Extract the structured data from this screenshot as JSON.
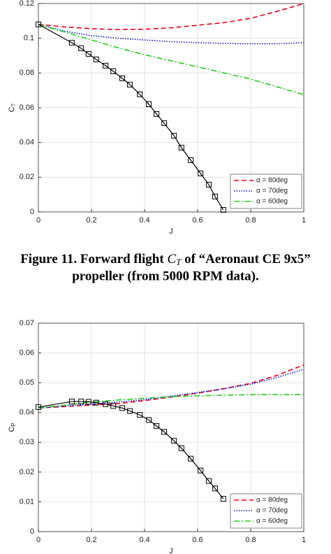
{
  "chart_data": [
    {
      "type": "line",
      "xlabel": "J",
      "ylabel": "C",
      "ylabel_subscript": "T",
      "xlim": [
        0,
        1
      ],
      "xticks": [
        0,
        0.2,
        0.4,
        0.6,
        0.8,
        1
      ],
      "ylim": [
        0,
        0.12
      ],
      "yticks": [
        0,
        0.02,
        0.04,
        0.06,
        0.08,
        0.1,
        0.12
      ],
      "grid": true,
      "legend": "lower right",
      "series": [
        {
          "name": "α = 80deg",
          "color": "#e8001c",
          "linestyle": "dashed",
          "x": [
            0,
            0.1,
            0.2,
            0.3,
            0.4,
            0.5,
            0.6,
            0.7,
            0.8,
            0.9,
            1
          ],
          "values": [
            0.108,
            0.1065,
            0.1055,
            0.105,
            0.1052,
            0.106,
            0.1075,
            0.109,
            0.1115,
            0.1155,
            0.12
          ]
        },
        {
          "name": "α = 70deg",
          "color": "#0a14d8",
          "linestyle": "dotted",
          "x": [
            0,
            0.1,
            0.2,
            0.3,
            0.4,
            0.5,
            0.6,
            0.7,
            0.8,
            0.9,
            1
          ],
          "values": [
            0.108,
            0.104,
            0.1015,
            0.1,
            0.099,
            0.098,
            0.0975,
            0.097,
            0.0968,
            0.0968,
            0.0975
          ]
        },
        {
          "name": "α = 60deg",
          "color": "#1fcf1f",
          "linestyle": "dashdot",
          "x": [
            0,
            0.1,
            0.2,
            0.3,
            0.4,
            0.5,
            0.6,
            0.7,
            0.8,
            0.9,
            1
          ],
          "values": [
            0.108,
            0.1035,
            0.099,
            0.0945,
            0.0905,
            0.087,
            0.0835,
            0.08,
            0.0765,
            0.072,
            0.0675
          ]
        },
        {
          "color": "#000000",
          "linestyle": "solid",
          "marker": "square",
          "x": [
            0,
            0.126,
            0.161,
            0.189,
            0.218,
            0.253,
            0.282,
            0.316,
            0.345,
            0.382,
            0.416,
            0.445,
            0.474,
            0.511,
            0.539,
            0.574,
            0.611,
            0.642,
            0.666,
            0.697
          ],
          "values": [
            0.108,
            0.0974,
            0.0942,
            0.091,
            0.0878,
            0.0842,
            0.081,
            0.0769,
            0.0733,
            0.0677,
            0.062,
            0.0564,
            0.0511,
            0.0439,
            0.037,
            0.0298,
            0.0222,
            0.0157,
            0.0089,
            0.0012
          ]
        }
      ]
    },
    {
      "type": "line",
      "xlabel": "J",
      "ylabel": "C",
      "ylabel_subscript": "P",
      "xlim": [
        0,
        1
      ],
      "xticks": [
        0,
        0.2,
        0.4,
        0.6,
        0.8,
        1
      ],
      "ylim": [
        0,
        0.07
      ],
      "yticks": [
        0,
        0.01,
        0.02,
        0.03,
        0.04,
        0.05,
        0.06,
        0.07
      ],
      "grid": true,
      "legend": "lower right",
      "series": [
        {
          "name": "α = 80deg",
          "color": "#e8001c",
          "linestyle": "dashed",
          "x": [
            0,
            0.1,
            0.2,
            0.3,
            0.4,
            0.5,
            0.6,
            0.7,
            0.8,
            0.9,
            1
          ],
          "values": [
            0.0415,
            0.042,
            0.0425,
            0.043,
            0.044,
            0.0452,
            0.0465,
            0.048,
            0.0498,
            0.0525,
            0.056
          ]
        },
        {
          "name": "α = 70deg",
          "color": "#0a14d8",
          "linestyle": "dotted",
          "x": [
            0,
            0.1,
            0.2,
            0.3,
            0.4,
            0.5,
            0.6,
            0.7,
            0.8,
            0.9,
            1
          ],
          "values": [
            0.0415,
            0.0422,
            0.0428,
            0.0435,
            0.0443,
            0.0455,
            0.0467,
            0.048,
            0.0495,
            0.0518,
            0.0545
          ]
        },
        {
          "name": "α = 60deg",
          "color": "#1fcf1f",
          "linestyle": "dashdot",
          "x": [
            0,
            0.1,
            0.2,
            0.3,
            0.4,
            0.5,
            0.6,
            0.7,
            0.8,
            0.9,
            1
          ],
          "values": [
            0.0415,
            0.0425,
            0.0435,
            0.0442,
            0.0448,
            0.0453,
            0.0456,
            0.0458,
            0.046,
            0.046,
            0.046
          ]
        },
        {
          "color": "#000000",
          "linestyle": "solid",
          "marker": "square",
          "x": [
            0,
            0.126,
            0.161,
            0.189,
            0.218,
            0.253,
            0.282,
            0.316,
            0.345,
            0.382,
            0.416,
            0.445,
            0.474,
            0.511,
            0.539,
            0.574,
            0.611,
            0.642,
            0.666,
            0.697
          ],
          "values": [
            0.0418,
            0.0437,
            0.0437,
            0.0436,
            0.0433,
            0.0428,
            0.0422,
            0.0415,
            0.0405,
            0.0392,
            0.0375,
            0.0355,
            0.0335,
            0.0305,
            0.028,
            0.0245,
            0.0205,
            0.017,
            0.0145,
            0.011
          ]
        }
      ]
    }
  ],
  "caption": {
    "label": "Figure 11",
    "text_before": ".   Forward flight",
    "math": "C",
    "math_subscript": "T",
    "text_after": "of “Aeronaut CE 9x5”",
    "line2": "propeller (from 5000 RPM data)."
  }
}
